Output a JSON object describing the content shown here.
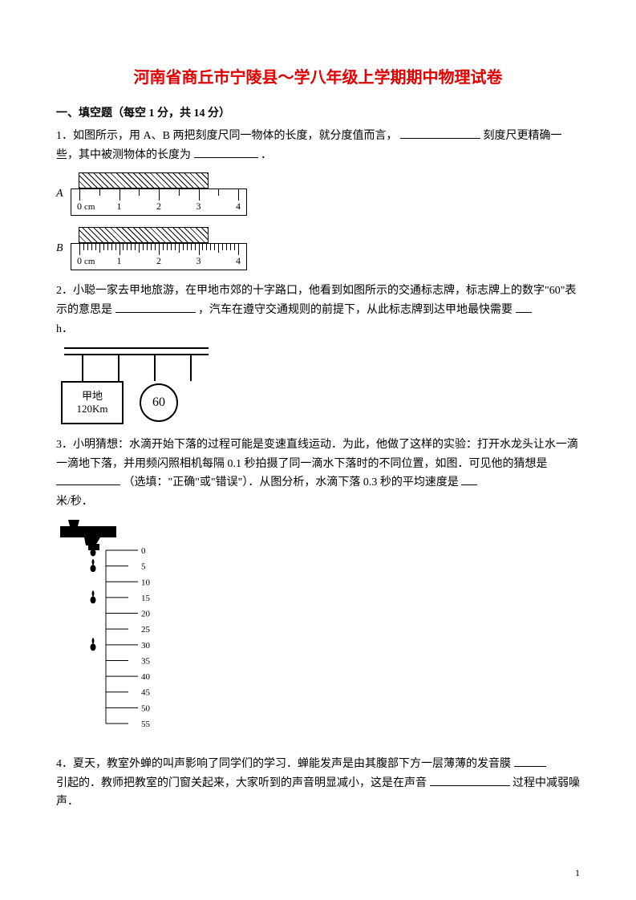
{
  "page": {
    "number": "1"
  },
  "title": "河南省商丘市宁陵县～学八年级上学期期中物理试卷",
  "section1": {
    "heading": "一、填空题（每空 1 分，共 14 分）"
  },
  "q1": {
    "text_a": "1．如图所示，用 A、B 两把刻度尺同一物体的长度，就分度值而言，",
    "text_b": "刻度尺更精确一些，其中被测物体的长度为",
    "text_c": "．",
    "ruler": {
      "cm_label": "cm",
      "numbers": [
        "0",
        "1",
        "2",
        "3",
        "4"
      ],
      "labelA": "A",
      "labelB": "B",
      "majorA": 5,
      "minorA_per": 2,
      "majorB": 5,
      "minorB_per": 10
    }
  },
  "q2": {
    "text_a": "2．小聪一家去甲地旅游，在甲地市郊的十字路口，他看到如图所示的交通标志牌，标志牌上的数字\"60\"表示的意思是",
    "text_b": "，汽车在遵守交通规则的前提下，从此标志牌到达甲地最快需要",
    "text_c": "h．",
    "sign": {
      "name": "甲地",
      "dist": "120Km",
      "limit": "60"
    }
  },
  "q3": {
    "text_a": "3．小明猜想：水滴开始下落的过程可能是变速直线运动．为此，他做了这样的实验：打开水龙头让水一滴一滴地下落，并用频闪照相机每隔 0.1 秒拍摄了同一滴水下落时的不同位置，如图．可见他的猜想是",
    "text_b": "（选填：\"正确\"或\"错误\"）．从图分析，水滴下落 0.3 秒的平均速度是",
    "text_c": "米/秒．",
    "scale": {
      "marks": [
        "0",
        "5",
        "10",
        "15",
        "20",
        "25",
        "30",
        "35",
        "40",
        "45",
        "50",
        "55"
      ],
      "drops_at": [
        0,
        5,
        15,
        30
      ]
    }
  },
  "q4": {
    "text_a": "4．夏天，教室外蝉的叫声影响了同学们的学习．蝉能发声是由其腹部下方一层薄薄的发音膜",
    "text_b": "引起的．教师把教室的门窗关起来，大家听到的声音明显减小，这是在声音",
    "text_c": "过程中减弱噪声．"
  }
}
